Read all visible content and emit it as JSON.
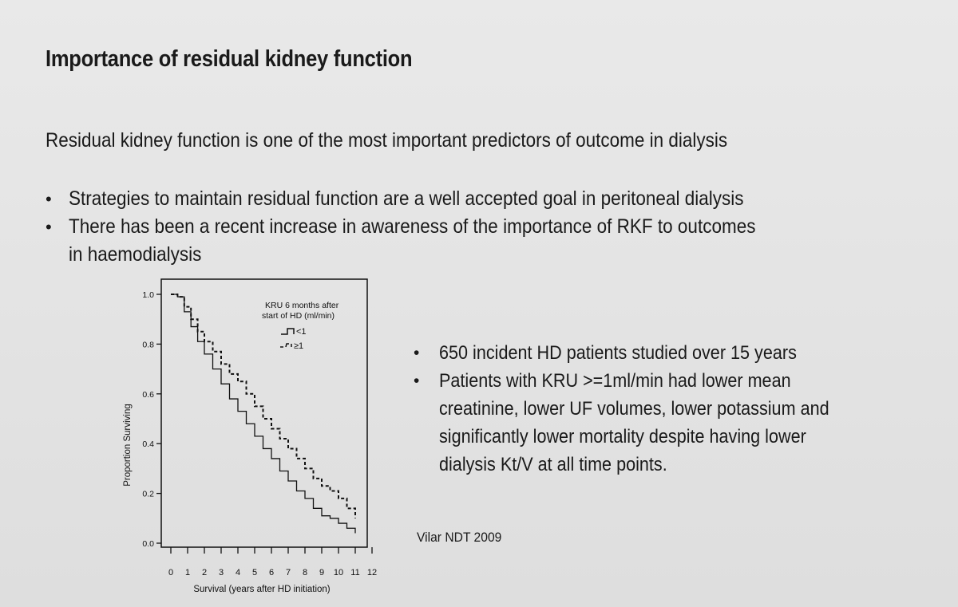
{
  "slide": {
    "title": "Importance of residual kidney function",
    "subtitle": "Residual kidney function is one of the most important predictors of outcome in dialysis",
    "bullets": [
      "Strategies to maintain residual function are a well accepted goal in peritoneal dialysis",
      "There has been a recent increase in awareness of the importance of RKF to outcomes in haemodialysis"
    ],
    "right_bullets": [
      "650 incident HD patients studied over 15 years",
      "Patients with KRU >=1ml/min had lower mean creatinine, lower UF volumes, lower potassium and significantly lower mortality despite having lower dialysis Kt/V at all time points."
    ],
    "citation": "Vilar NDT 2009"
  },
  "chart_data": {
    "type": "line",
    "title": "",
    "xlabel": "Survival (years after HD initiation)",
    "ylabel": "Proportion Surviving",
    "xlim": [
      0,
      12
    ],
    "ylim": [
      0,
      1.0
    ],
    "x_ticks": [
      "0",
      "1",
      "2",
      "3",
      "4",
      "5",
      "6",
      "7",
      "8",
      "9",
      "10",
      "11",
      "12"
    ],
    "y_ticks": [
      "0.0",
      "0.2",
      "0.4",
      "0.6",
      "0.8",
      "1.0"
    ],
    "legend": {
      "title_line1": "KRU 6 months after",
      "title_line2": "start of HD (ml/min)",
      "placement": "top-right",
      "entries": [
        "<1",
        "≥1"
      ]
    },
    "series": [
      {
        "name": "<1",
        "style": "solid",
        "x": [
          0,
          0.4,
          0.8,
          1.2,
          1.6,
          2.0,
          2.5,
          3.0,
          3.5,
          4.0,
          4.5,
          5.0,
          5.5,
          6.0,
          6.5,
          7.0,
          7.5,
          8.0,
          8.5,
          9.0,
          9.5,
          10.0,
          10.5,
          11.0
        ],
        "y": [
          1.0,
          0.99,
          0.93,
          0.87,
          0.81,
          0.76,
          0.7,
          0.64,
          0.58,
          0.53,
          0.48,
          0.43,
          0.38,
          0.34,
          0.29,
          0.25,
          0.21,
          0.18,
          0.14,
          0.11,
          0.1,
          0.08,
          0.06,
          0.04
        ]
      },
      {
        "name": "≥1",
        "style": "dashed",
        "x": [
          0,
          0.4,
          0.8,
          1.2,
          1.6,
          2.0,
          2.5,
          3.0,
          3.5,
          4.0,
          4.5,
          5.0,
          5.5,
          6.0,
          6.5,
          7.0,
          7.5,
          8.0,
          8.5,
          9.0,
          9.5,
          10.0,
          10.5,
          11.0
        ],
        "y": [
          1.0,
          0.99,
          0.95,
          0.9,
          0.85,
          0.81,
          0.77,
          0.72,
          0.68,
          0.65,
          0.6,
          0.55,
          0.5,
          0.46,
          0.42,
          0.38,
          0.34,
          0.3,
          0.26,
          0.23,
          0.21,
          0.18,
          0.14,
          0.1
        ]
      }
    ]
  }
}
